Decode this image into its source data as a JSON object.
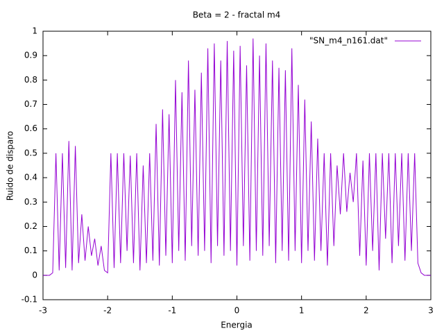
{
  "chart_data": {
    "type": "line",
    "title": "Beta = 2 - fractal m4",
    "x_label": "Energia",
    "y_label": "Ruido de disparo",
    "x": [
      -3,
      -2.95,
      -2.9,
      -2.85,
      -2.8,
      -2.75,
      -2.7,
      -2.65,
      -2.6,
      -2.55,
      -2.5,
      -2.45,
      -2.4,
      -2.35,
      -2.3,
      -2.25,
      -2.2,
      -2.15,
      -2.1,
      -2.05,
      -2,
      -1.95,
      -1.9,
      -1.85,
      -1.8,
      -1.75,
      -1.7,
      -1.65,
      -1.6,
      -1.55,
      -1.5,
      -1.45,
      -1.4,
      -1.35,
      -1.3,
      -1.25,
      -1.2,
      -1.15,
      -1.1,
      -1.05,
      -1,
      -0.95,
      -0.9,
      -0.85,
      -0.8,
      -0.75,
      -0.7,
      -0.65,
      -0.6,
      -0.55,
      -0.5,
      -0.45,
      -0.4,
      -0.35,
      -0.3,
      -0.25,
      -0.2,
      -0.15,
      -0.1,
      -0.05,
      0,
      0.05,
      0.1,
      0.15,
      0.2,
      0.25,
      0.3,
      0.35,
      0.4,
      0.45,
      0.5,
      0.55,
      0.6,
      0.65,
      0.7,
      0.75,
      0.8,
      0.85,
      0.9,
      0.95,
      1,
      1.05,
      1.1,
      1.15,
      1.2,
      1.25,
      1.3,
      1.35,
      1.4,
      1.45,
      1.5,
      1.55,
      1.6,
      1.65,
      1.7,
      1.75,
      1.8,
      1.85,
      1.9,
      1.95,
      2,
      2.05,
      2.1,
      2.15,
      2.2,
      2.25,
      2.3,
      2.35,
      2.4,
      2.45,
      2.5,
      2.55,
      2.6,
      2.65,
      2.7,
      2.75,
      2.8,
      2.85,
      2.9,
      2.95,
      3
    ],
    "series": [
      {
        "name": "\"SN_m4_n161.dat\"",
        "color": "#9400d3",
        "values": [
          0,
          0,
          0,
          0.01,
          0.5,
          0.02,
          0.5,
          0.03,
          0.55,
          0.02,
          0.53,
          0.05,
          0.25,
          0.06,
          0.2,
          0.08,
          0.15,
          0.04,
          0.12,
          0.02,
          0.01,
          0.5,
          0.03,
          0.5,
          0.05,
          0.5,
          0.1,
          0.49,
          0.05,
          0.5,
          0.02,
          0.45,
          0.05,
          0.5,
          0.06,
          0.62,
          0.04,
          0.68,
          0.08,
          0.66,
          0.05,
          0.8,
          0.1,
          0.75,
          0.06,
          0.88,
          0.12,
          0.76,
          0.08,
          0.83,
          0.1,
          0.93,
          0.05,
          0.95,
          0.12,
          0.88,
          0.08,
          0.96,
          0.1,
          0.92,
          0.04,
          0.94,
          0.12,
          0.86,
          0.06,
          0.97,
          0.1,
          0.9,
          0.08,
          0.95,
          0.12,
          0.88,
          0.05,
          0.85,
          0.1,
          0.84,
          0.06,
          0.93,
          0.1,
          0.78,
          0.05,
          0.72,
          0.1,
          0.63,
          0.06,
          0.56,
          0.1,
          0.5,
          0.04,
          0.5,
          0.12,
          0.45,
          0.25,
          0.5,
          0.26,
          0.42,
          0.3,
          0.5,
          0.08,
          0.47,
          0.04,
          0.5,
          0.1,
          0.5,
          0.02,
          0.5,
          0.15,
          0.5,
          0.05,
          0.5,
          0.12,
          0.5,
          0.06,
          0.5,
          0.1,
          0.5,
          0.05,
          0.01,
          0,
          0,
          0
        ]
      }
    ],
    "xlim": [
      -3,
      3
    ],
    "xticks": [
      -3,
      -2,
      -1,
      0,
      1,
      2,
      3
    ],
    "ylim": [
      -0.1,
      1
    ],
    "yticks": [
      -0.1,
      0,
      0.1,
      0.2,
      0.3,
      0.4,
      0.5,
      0.6,
      0.7,
      0.8,
      0.9,
      1
    ],
    "grid": false,
    "legend": "top-right"
  }
}
